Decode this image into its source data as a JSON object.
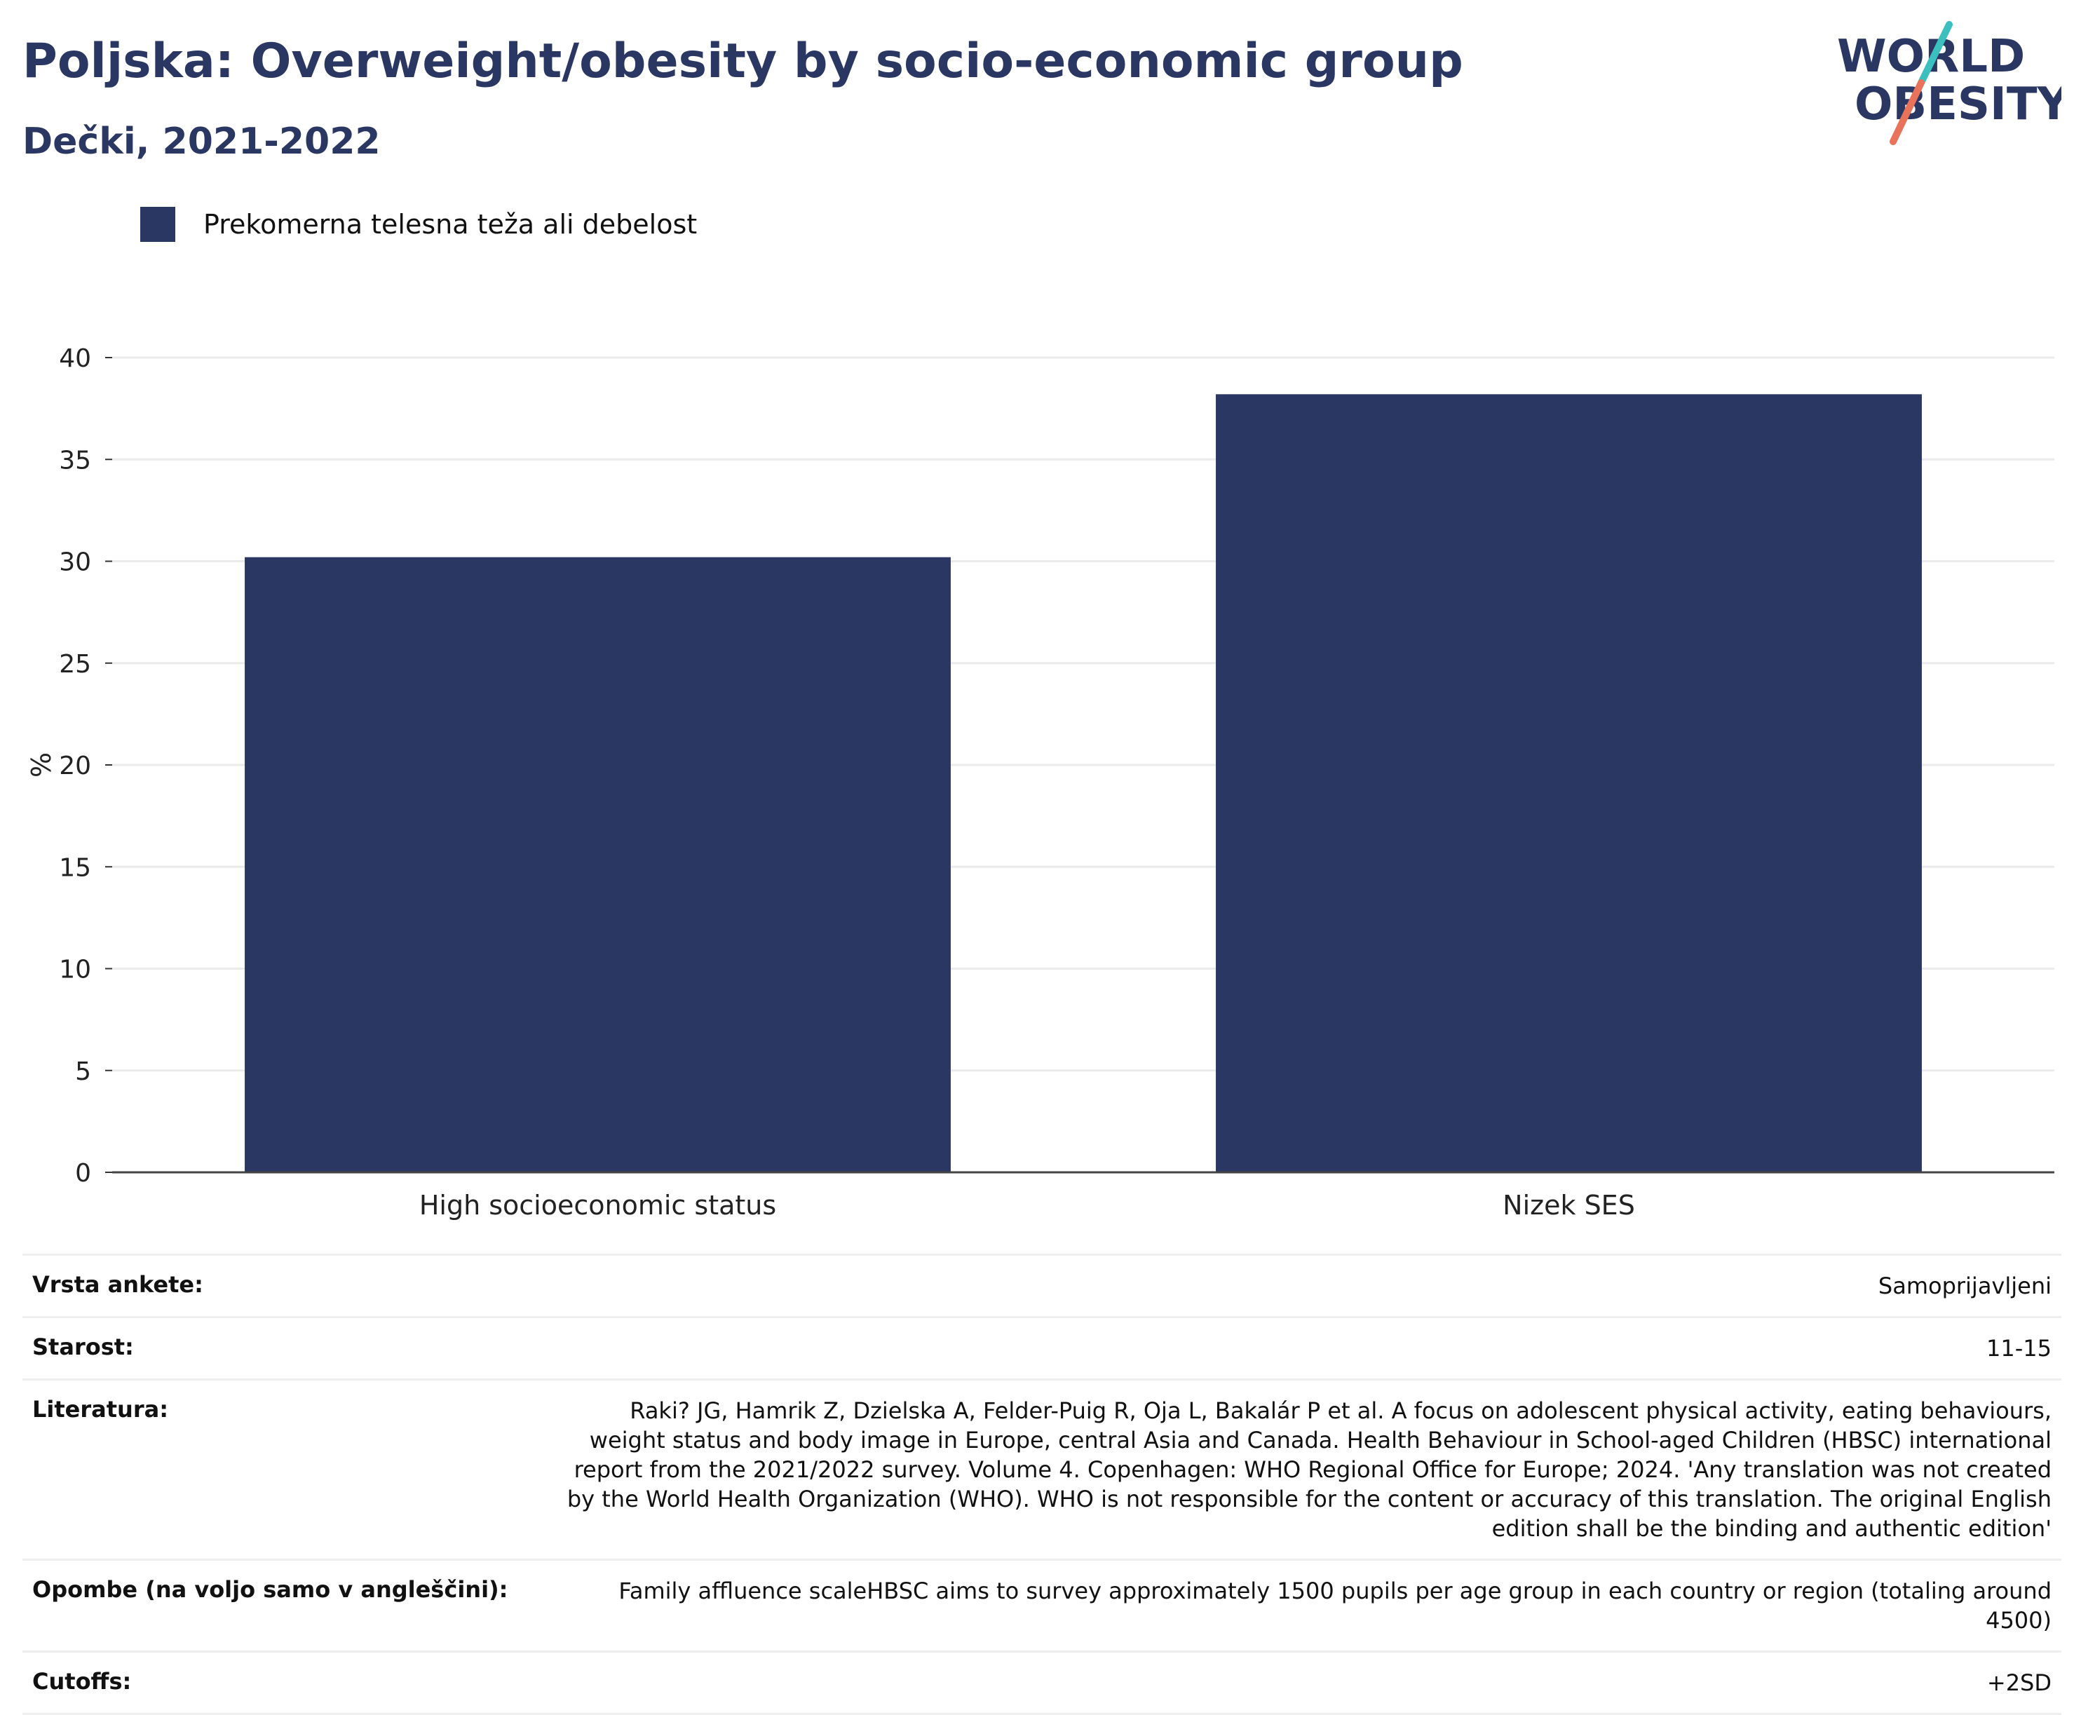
{
  "header": {
    "title": "Poljska: Overweight/obesity by socio-economic group",
    "subtitle": "Dečki, 2021-2022"
  },
  "logo": {
    "line1": "WORLD",
    "line2": "OBESITY",
    "accent_teal": "#3bbfbf",
    "accent_coral": "#e8735a"
  },
  "chart_data": {
    "type": "bar",
    "categories": [
      "High socioeconomic status",
      "Nizek SES"
    ],
    "series": [
      {
        "name": "Prekomerna telesna teža ali debelost",
        "values": [
          30.2,
          38.2
        ],
        "color": "#2b3763"
      }
    ],
    "ylabel": "%",
    "ylim": [
      0,
      40
    ],
    "yticks": [
      0,
      5,
      10,
      15,
      20,
      25,
      30,
      35,
      40
    ],
    "grid": true,
    "legend_position": "top-left"
  },
  "meta": [
    {
      "label": "Vrsta ankete:",
      "value": "Samoprijavljeni"
    },
    {
      "label": "Starost:",
      "value": "11-15"
    },
    {
      "label": "Literatura:",
      "value": "Raki? JG, Hamrik Z, Dzielska A, Felder-Puig R, Oja L, Bakalár P et al. A focus on adolescent physical activity, eating behaviours, weight status and body image in Europe, central Asia and Canada. Health Behaviour in School-aged Children (HBSC) international report from the 2021/2022 survey. Volume 4. Copenhagen: WHO Regional Office for Europe; 2024. 'Any translation was not created by the World Health Organization (WHO). WHO is not responsible for the content or accuracy of this translation. The original English edition shall be the binding and authentic edition'"
    },
    {
      "label": "Opombe (na voljo samo v angleščini):",
      "value": "Family affluence scaleHBSC aims to survey approximately 1500 pupils per age group in each country or region (totaling around 4500)"
    },
    {
      "label": "Cutoffs:",
      "value": "+2SD"
    }
  ]
}
